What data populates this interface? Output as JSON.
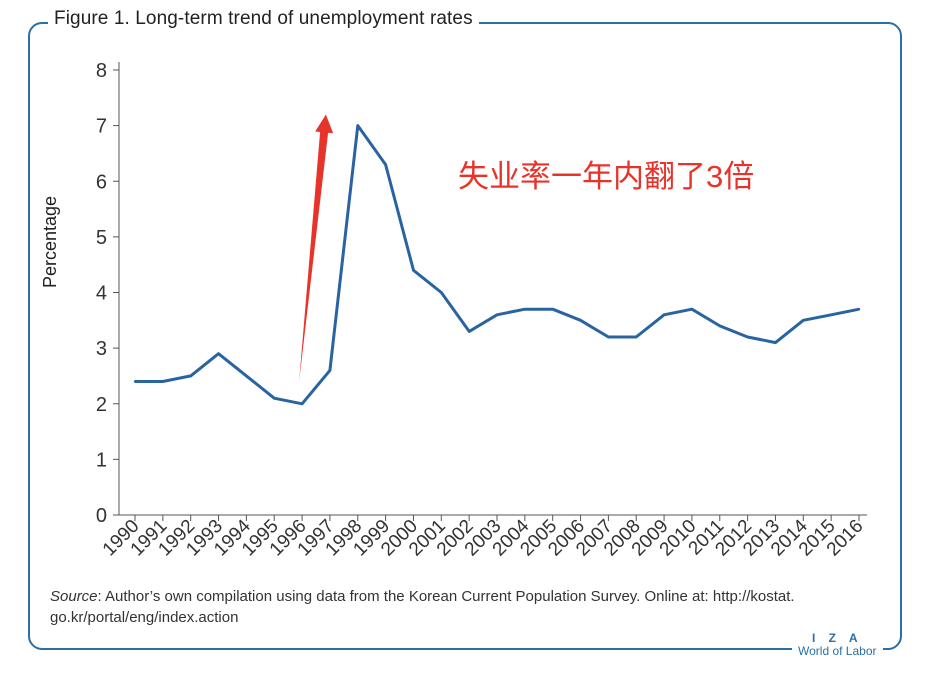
{
  "figure": {
    "title": "Figure 1. Long-term trend of unemployment rates",
    "source_label": "Source",
    "source_text": ": Author’s own compilation using data from the Korean Current Population Survey. Online at: http://kostat. go.kr/portal/eng/index.action",
    "logo_top": "I Z A",
    "logo_bottom": "World of Labor",
    "annotation": "失业率一年内翻了3倍"
  },
  "colors": {
    "line": "#2a64a0",
    "frame": "#2a6fa8",
    "arrow": "#e8332a",
    "annotation": "#e8332a"
  },
  "chart_data": {
    "type": "line",
    "title": "Figure 1. Long-term trend of unemployment rates",
    "xlabel": "",
    "ylabel": "Percentage",
    "ylim": [
      0,
      8
    ],
    "yticks": [
      0,
      1,
      2,
      3,
      4,
      5,
      6,
      7,
      8
    ],
    "grid": false,
    "categories": [
      "1990",
      "1991",
      "1992",
      "1993",
      "1994",
      "1995",
      "1996",
      "1997",
      "1998",
      "1999",
      "2000",
      "2001",
      "2002",
      "2003",
      "2004",
      "2005",
      "2006",
      "2007",
      "2008",
      "2009",
      "2010",
      "2011",
      "2012",
      "2013",
      "2014",
      "2015",
      "2016"
    ],
    "series": [
      {
        "name": "Unemployment rate",
        "values": [
          2.4,
          2.4,
          2.5,
          2.9,
          2.5,
          2.1,
          2.0,
          2.6,
          7.0,
          6.3,
          4.4,
          4.0,
          3.3,
          3.6,
          3.7,
          3.7,
          3.5,
          3.2,
          3.2,
          3.6,
          3.7,
          3.4,
          3.2,
          3.1,
          3.5,
          3.6,
          3.7
        ]
      }
    ],
    "annotations": [
      {
        "type": "arrow",
        "from_year": "1996",
        "from_value": 2.4,
        "to_year": "1997",
        "to_value": 7.2
      }
    ]
  }
}
